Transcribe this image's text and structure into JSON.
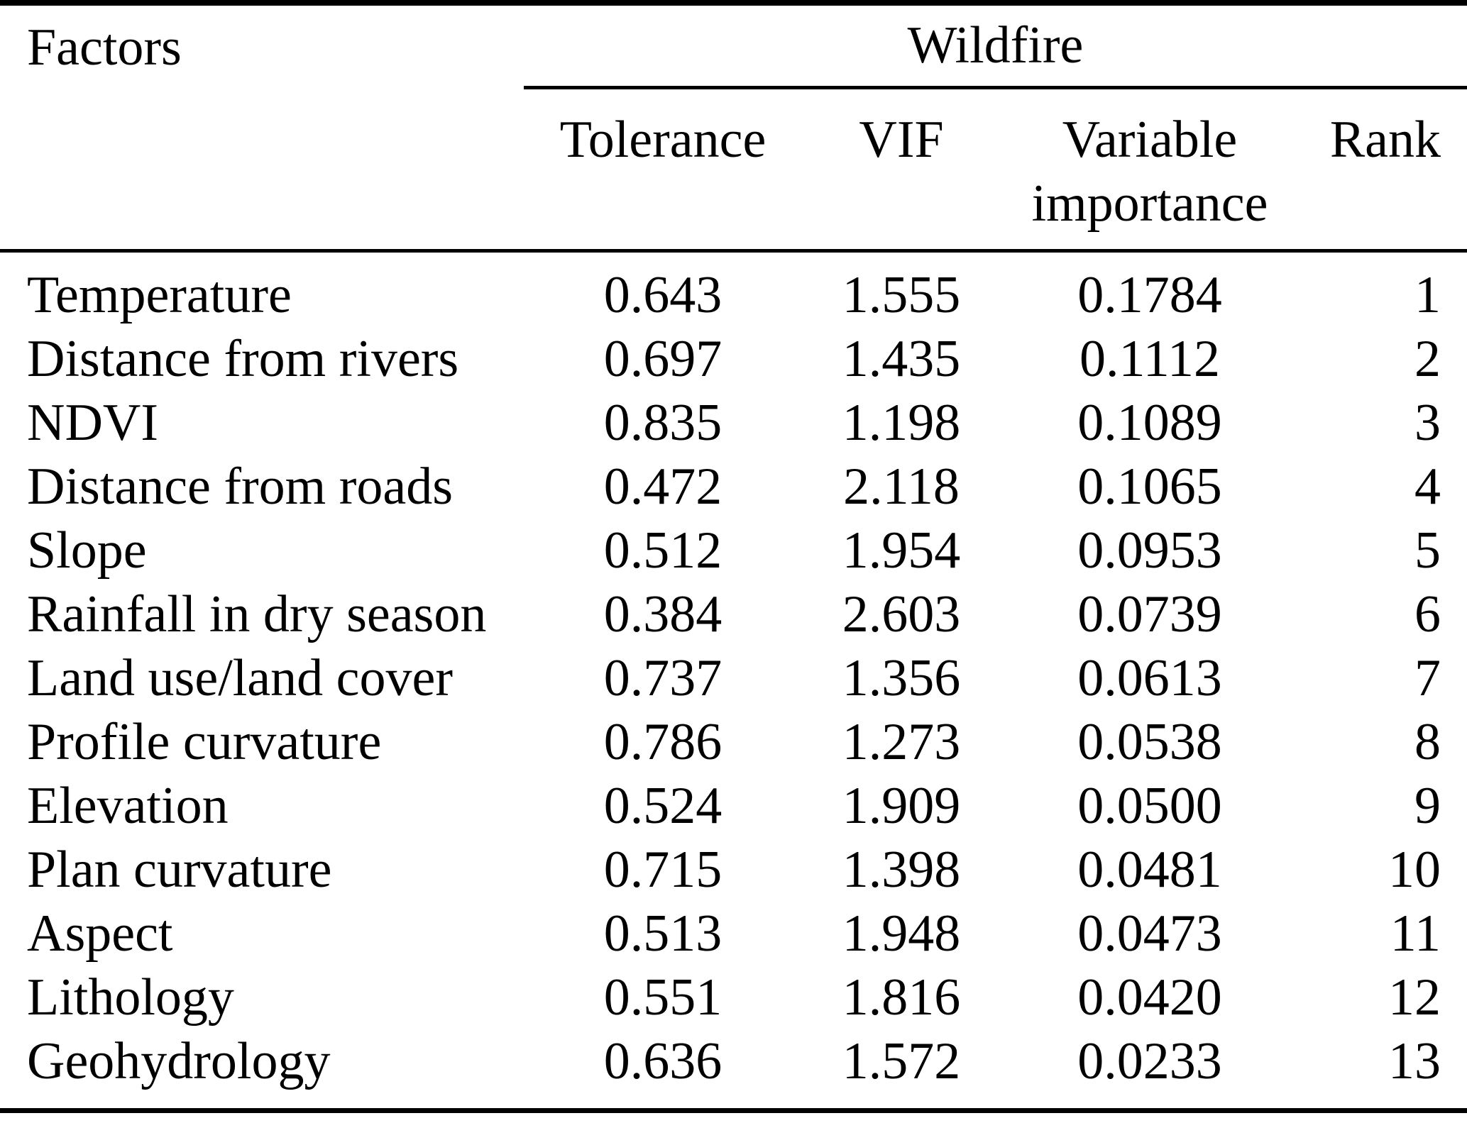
{
  "page": {
    "background": "#ffffff",
    "text_color": "#000000",
    "rule_color": "#000000"
  },
  "table": {
    "header": {
      "factors": "Factors",
      "group": "Wildfire",
      "tolerance": "Tolerance",
      "vif": "VIF",
      "variable_importance_line1": "Variable",
      "variable_importance_line2": "importance",
      "rank": "Rank"
    },
    "rows": [
      {
        "factor": "Temperature",
        "tolerance": "0.643",
        "vif": "1.555",
        "variable_importance": "0.1784",
        "rank": "1"
      },
      {
        "factor": "Distance from rivers",
        "tolerance": "0.697",
        "vif": "1.435",
        "variable_importance": "0.1112",
        "rank": "2"
      },
      {
        "factor": "NDVI",
        "tolerance": "0.835",
        "vif": "1.198",
        "variable_importance": "0.1089",
        "rank": "3"
      },
      {
        "factor": "Distance from roads",
        "tolerance": "0.472",
        "vif": "2.118",
        "variable_importance": "0.1065",
        "rank": "4"
      },
      {
        "factor": "Slope",
        "tolerance": "0.512",
        "vif": "1.954",
        "variable_importance": "0.0953",
        "rank": "5"
      },
      {
        "factor": "Rainfall in dry season",
        "tolerance": "0.384",
        "vif": "2.603",
        "variable_importance": "0.0739",
        "rank": "6"
      },
      {
        "factor": "Land use/land cover",
        "tolerance": "0.737",
        "vif": "1.356",
        "variable_importance": "0.0613",
        "rank": "7"
      },
      {
        "factor": "Profile curvature",
        "tolerance": "0.786",
        "vif": "1.273",
        "variable_importance": "0.0538",
        "rank": "8"
      },
      {
        "factor": "Elevation",
        "tolerance": "0.524",
        "vif": "1.909",
        "variable_importance": "0.0500",
        "rank": "9"
      },
      {
        "factor": "Plan curvature",
        "tolerance": "0.715",
        "vif": "1.398",
        "variable_importance": "0.0481",
        "rank": "10"
      },
      {
        "factor": "Aspect",
        "tolerance": "0.513",
        "vif": "1.948",
        "variable_importance": "0.0473",
        "rank": "11"
      },
      {
        "factor": "Lithology",
        "tolerance": "0.551",
        "vif": "1.816",
        "variable_importance": "0.0420",
        "rank": "12"
      },
      {
        "factor": "Geohydrology",
        "tolerance": "0.636",
        "vif": "1.572",
        "variable_importance": "0.0233",
        "rank": "13"
      }
    ]
  }
}
